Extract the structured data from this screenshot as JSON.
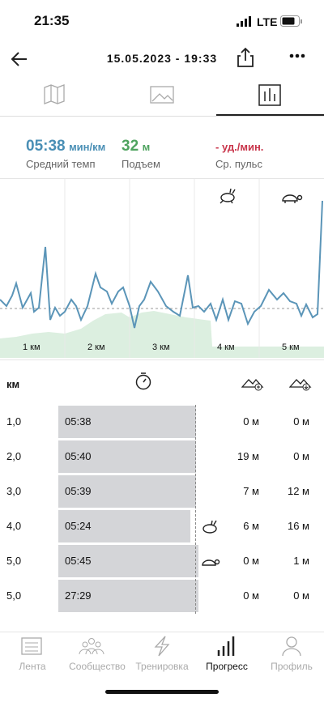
{
  "status": {
    "time": "21:35",
    "network": "LTE"
  },
  "header": {
    "title": "15.05.2023 - 19:33"
  },
  "stats": [
    {
      "value": "05:38",
      "unit": "мин/км",
      "label": "Средний темп"
    },
    {
      "value": "32",
      "unit": "м",
      "label": "Подъем"
    },
    {
      "value": "-",
      "unit": "уд./мин.",
      "label": "Ср. пульс"
    }
  ],
  "chart": {
    "x_labels": [
      "1 км",
      "2 км",
      "3 км",
      "4 км",
      "5 км"
    ]
  },
  "table": {
    "header": "км",
    "rows": [
      [
        "1,0",
        "05:38",
        "0 м",
        "0 м"
      ],
      [
        "2,0",
        "05:40",
        "19 м",
        "0 м"
      ],
      [
        "3,0",
        "05:39",
        "7 м",
        "12 м"
      ],
      [
        "4,0",
        "05:24",
        "6 м",
        "16 м"
      ],
      [
        "5,0",
        "05:45",
        "0 м",
        "1 м"
      ],
      [
        "5,0",
        "27:29",
        "0 м",
        "0 м"
      ]
    ]
  },
  "tabbar": [
    "Лента",
    "Сообщество",
    "Тренировка",
    "Прогресс",
    "Профиль"
  ]
}
